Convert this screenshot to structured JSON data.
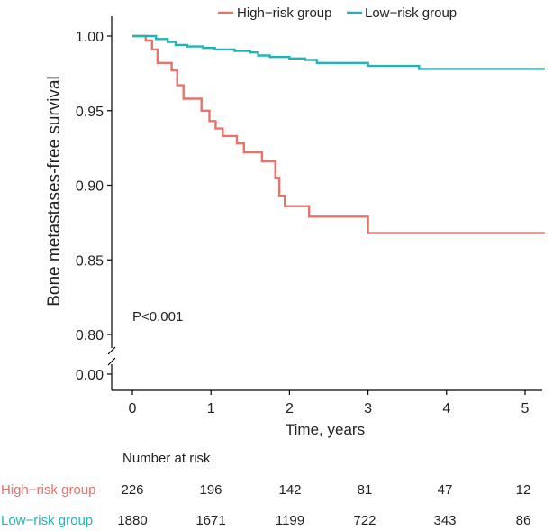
{
  "chart_data": {
    "type": "line",
    "xlabel": "Time, years",
    "ylabel": "Bone metastases-free survival",
    "xlim": [
      0,
      5.25
    ],
    "ylim": [
      0.8,
      1.0
    ],
    "broken_axis_tick": "0.00",
    "x_ticks": [
      "0",
      "1",
      "2",
      "3",
      "4",
      "5"
    ],
    "y_ticks": [
      "0.80",
      "0.85",
      "0.90",
      "0.95",
      "1.00"
    ],
    "legend_position": "top",
    "annotation": "P<0.001",
    "series": [
      {
        "name": "High−risk group",
        "color": "#E8736B",
        "steps": [
          [
            0,
            1.0
          ],
          [
            0.17,
            0.997
          ],
          [
            0.25,
            0.991
          ],
          [
            0.32,
            0.982
          ],
          [
            0.5,
            0.977
          ],
          [
            0.57,
            0.967
          ],
          [
            0.65,
            0.958
          ],
          [
            0.88,
            0.95
          ],
          [
            0.98,
            0.943
          ],
          [
            1.06,
            0.938
          ],
          [
            1.15,
            0.933
          ],
          [
            1.33,
            0.928
          ],
          [
            1.42,
            0.922
          ],
          [
            1.65,
            0.916
          ],
          [
            1.82,
            0.905
          ],
          [
            1.87,
            0.893
          ],
          [
            1.94,
            0.886
          ],
          [
            2.25,
            0.879
          ],
          [
            3.0,
            0.868
          ],
          [
            5.25,
            0.868
          ]
        ]
      },
      {
        "name": "Low−risk group",
        "color": "#1FB5B8",
        "steps": [
          [
            0,
            1.0
          ],
          [
            0.3,
            0.998
          ],
          [
            0.45,
            0.996
          ],
          [
            0.55,
            0.994
          ],
          [
            0.7,
            0.993
          ],
          [
            0.9,
            0.992
          ],
          [
            1.05,
            0.991
          ],
          [
            1.3,
            0.99
          ],
          [
            1.5,
            0.989
          ],
          [
            1.6,
            0.987
          ],
          [
            1.75,
            0.986
          ],
          [
            2.0,
            0.985
          ],
          [
            2.2,
            0.984
          ],
          [
            2.35,
            0.982
          ],
          [
            3.0,
            0.98
          ],
          [
            3.65,
            0.978
          ],
          [
            5.25,
            0.978
          ]
        ]
      }
    ],
    "risk_table": {
      "title": "Number at risk",
      "rows": [
        {
          "label": "High−risk group",
          "color": "#E8736B",
          "values": [
            "226",
            "196",
            "142",
            "81",
            "47",
            "12"
          ]
        },
        {
          "label": "Low−risk group",
          "color": "#1FB5B8",
          "values": [
            "1880",
            "1671",
            "1199",
            "722",
            "343",
            "86"
          ]
        }
      ]
    }
  }
}
